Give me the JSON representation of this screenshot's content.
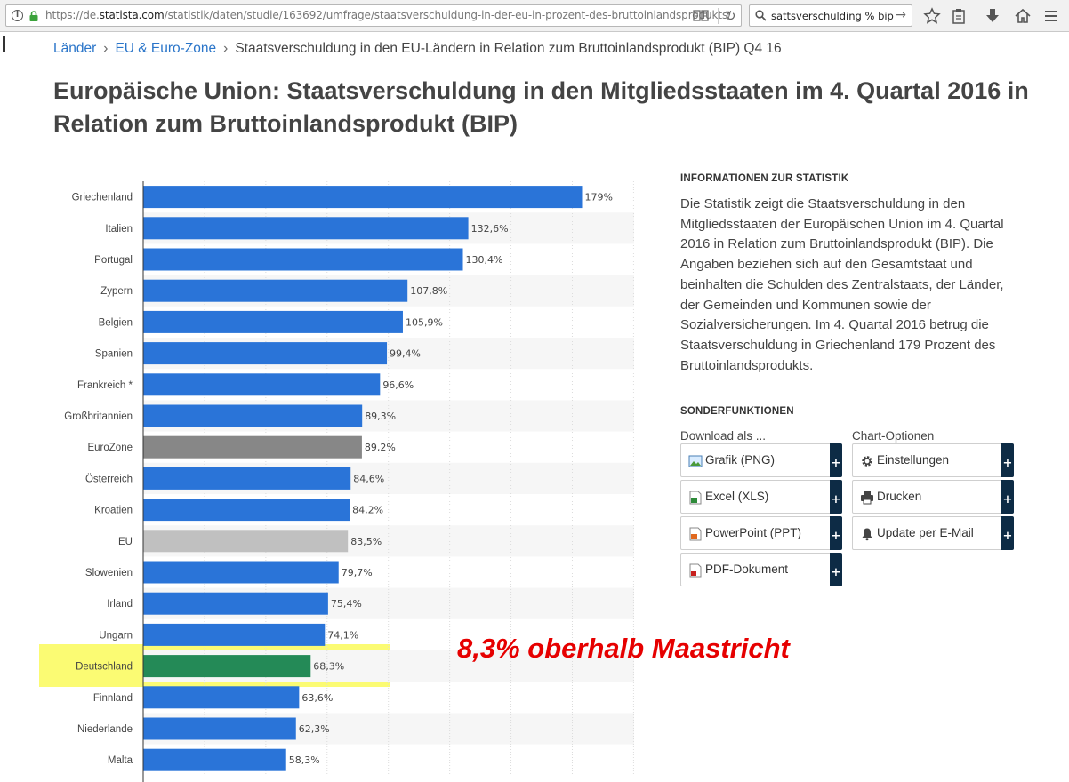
{
  "browser": {
    "url_prefix": "https://de.",
    "url_domain": "statista.com",
    "url_path": "/statistik/daten/studie/163692/umfrage/staatsverschuldung-in-der-eu-in-prozent-des-bruttoinlandsprodukts/",
    "search_value": "sattsverschulding % bip"
  },
  "breadcrumb": {
    "items": [
      "Länder",
      "EU & Euro-Zone"
    ],
    "separator": "›",
    "current": "Staatsverschuldung in den EU-Ländern in Relation zum Bruttoinlandsprodukt (BIP) Q4 16"
  },
  "page_title": "Europäische Union: Staatsverschuldung in den Mitgliedsstaaten im 4. Quartal 2016 in Relation zum Bruttoinlandsprodukt (BIP)",
  "chart_data": {
    "type": "bar",
    "orientation": "horizontal",
    "categories": [
      "Griechenland",
      "Italien",
      "Portugal",
      "Zypern",
      "Belgien",
      "Spanien",
      "Frankreich *",
      "Großbritannien",
      "EuroZone",
      "Österreich",
      "Kroatien",
      "EU",
      "Slowenien",
      "Irland",
      "Ungarn",
      "Deutschland",
      "Finnland",
      "Niederlande",
      "Malta"
    ],
    "values": [
      179,
      132.6,
      130.4,
      107.8,
      105.9,
      99.4,
      96.6,
      89.3,
      89.2,
      84.6,
      84.2,
      83.5,
      79.7,
      75.4,
      74.1,
      68.3,
      63.6,
      62.3,
      58.3
    ],
    "value_labels": [
      "179%",
      "132,6%",
      "130,4%",
      "107,8%",
      "105,9%",
      "99,4%",
      "96,6%",
      "89,3%",
      "89,2%",
      "84,6%",
      "84,2%",
      "83,5%",
      "79,7%",
      "75,4%",
      "74,1%",
      "68,3%",
      "63,6%",
      "62,3%",
      "58,3%"
    ],
    "bar_colors": [
      "#2a74d8",
      "#2a74d8",
      "#2a74d8",
      "#2a74d8",
      "#2a74d8",
      "#2a74d8",
      "#2a74d8",
      "#2a74d8",
      "#878787",
      "#2a74d8",
      "#2a74d8",
      "#c0c0c0",
      "#2a74d8",
      "#2a74d8",
      "#2a74d8",
      "#248a57",
      "#2a74d8",
      "#2a74d8",
      "#2a74d8"
    ],
    "xlim": [
      0,
      200
    ],
    "grid": true,
    "highlighted_category": "Deutschland",
    "highlight_color": "#fafa5a",
    "annotation": "8,3% oberhalb Maastricht",
    "annotation_color": "#e60000"
  },
  "info": {
    "heading": "INFORMATIONEN ZUR STATISTIK",
    "text": "Die Statistik zeigt die Staatsverschuldung in den Mitgliedsstaaten der Europäischen Union im 4. Quartal 2016 in Relation zum Bruttoinlandsprodukt (BIP). Die Angaben beziehen sich auf den Gesamtstaat und beinhalten die Schulden des Zentralstaats, der Länder, der Gemeinden und Kommunen sowie der Sozialversicherungen. Im 4. Quartal 2016 betrug die Staatsverschuldung in Griechenland 179 Prozent des Bruttoinlandsprodukts."
  },
  "sonderfunktionen": {
    "heading": "SONDERFUNKTIONEN",
    "download_label": "Download als ...",
    "options_label": "Chart-Optionen",
    "plus": "+",
    "download_buttons": [
      "Grafik (PNG)",
      "Excel (XLS)",
      "PowerPoint (PPT)",
      "PDF-Dokument"
    ],
    "option_buttons": [
      "Einstellungen",
      "Drucken",
      "Update per E-Mail"
    ]
  }
}
